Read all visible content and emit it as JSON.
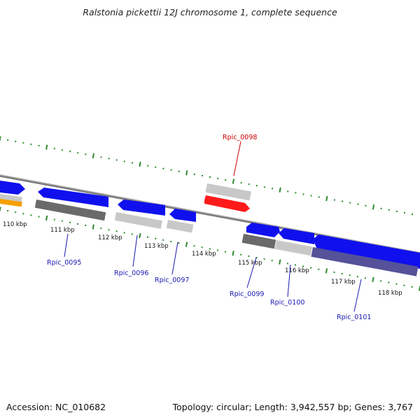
{
  "title": "Ralstonia pickettii 12J chromosome 1, complete sequence",
  "footer": {
    "accession": "Accession: NC_010682",
    "stats": "Topology: circular; Length: 3,942,557 bp; Genes: 3,767"
  },
  "colors": {
    "forward_gene": "#1010ee",
    "highlight_gene": "#ff1a1a",
    "gene_label": "#1a1ab0",
    "highlight_label": "#cc0000",
    "tick": "#2e8b2e",
    "backbone": "#7a7a7a",
    "feature_light": "#c8c8c8",
    "feature_dark": "#6a6a6a",
    "feature_orange": "#f5a000",
    "feature_purple": "#55529a"
  },
  "ticks": [
    {
      "label": "110 kbp"
    },
    {
      "label": "111 kbp"
    },
    {
      "label": "112 kbp"
    },
    {
      "label": "113 kbp"
    },
    {
      "label": "114 kbp"
    },
    {
      "label": "115 kbp"
    },
    {
      "label": "116 kbp"
    },
    {
      "label": "117 kbp"
    },
    {
      "label": "118 kbp"
    }
  ],
  "genes": [
    {
      "label": "Rpic_0095",
      "highlight": false
    },
    {
      "label": "Rpic_0096",
      "highlight": false
    },
    {
      "label": "Rpic_0097",
      "highlight": false
    },
    {
      "label": "Rpic_0098",
      "highlight": true
    },
    {
      "label": "Rpic_0099",
      "highlight": false
    },
    {
      "label": "Rpic_0100",
      "highlight": false
    },
    {
      "label": "Rpic_0101",
      "highlight": false
    }
  ]
}
